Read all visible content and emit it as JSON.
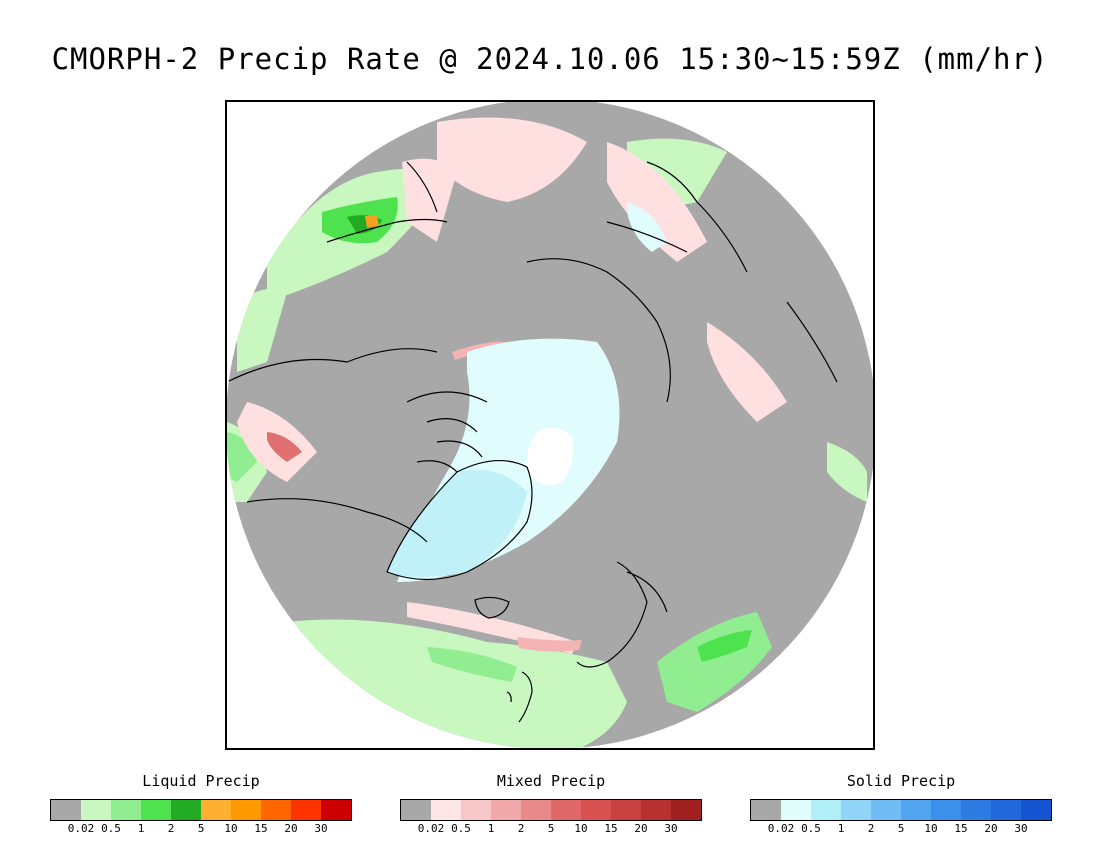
{
  "title": "CMORPH-2 Precip Rate @ 2024.10.06 15:30~15:59Z (mm/hr)",
  "map": {
    "projection": "north polar stereographic",
    "colors": {
      "background": "#a8a8a8",
      "liquid_light": "#c8f8c0",
      "liquid_mid": "#90ee90",
      "liquid_strong": "#4ee24e",
      "liquid_heavy": "#22aa22",
      "liquid_peak": "#f4a020",
      "mixed_light": "#ffe0e0",
      "mixed_mid": "#f4b4b4",
      "mixed_strong": "#e07070",
      "solid_light": "#e0fcfc",
      "solid_mid": "#c0f0f8",
      "snow_white": "#ffffff",
      "coast": "#000000"
    }
  },
  "legends": [
    {
      "title": "Liquid Precip",
      "colors": [
        "#a8a8a8",
        "#c8f8c0",
        "#90ee90",
        "#4ee24e",
        "#22aa22",
        "#ffb030",
        "#ff9900",
        "#ff6600",
        "#ff3300",
        "#cc0000"
      ],
      "ticks": [
        "0.02",
        "0.5",
        "1",
        "2",
        "5",
        "10",
        "15",
        "20",
        "30"
      ]
    },
    {
      "title": "Mixed Precip",
      "colors": [
        "#a8a8a8",
        "#ffe6e6",
        "#f8c8c8",
        "#f0a8a8",
        "#e88888",
        "#e06868",
        "#d85050",
        "#c84040",
        "#b83030",
        "#a02020"
      ],
      "ticks": [
        "0.02",
        "0.5",
        "1",
        "2",
        "5",
        "10",
        "15",
        "20",
        "30"
      ]
    },
    {
      "title": "Solid Precip",
      "colors": [
        "#a8a8a8",
        "#e0fcfc",
        "#b0eef8",
        "#90d4f8",
        "#70bcf4",
        "#50a4f0",
        "#3c90ec",
        "#2c7ce4",
        "#2068dc",
        "#1454d0"
      ],
      "ticks": [
        "0.02",
        "0.5",
        "1",
        "2",
        "5",
        "10",
        "15",
        "20",
        "30"
      ]
    }
  ]
}
